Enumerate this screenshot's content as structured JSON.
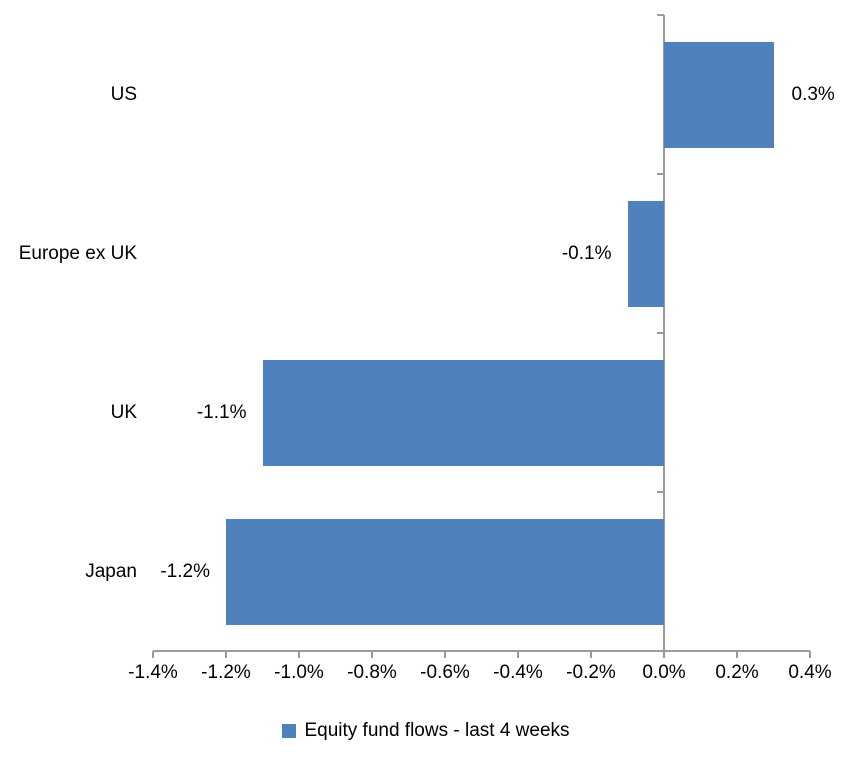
{
  "chart_data": {
    "type": "bar",
    "orientation": "horizontal",
    "title": "",
    "categories": [
      "US",
      "Europe ex UK",
      "UK",
      "Japan"
    ],
    "values": [
      0.3,
      -0.1,
      -1.1,
      -1.2
    ],
    "data_labels": [
      "0.3%",
      "-0.1%",
      "-1.1%",
      "-1.2%"
    ],
    "x_tick_labels": [
      "-1.4%",
      "-1.2%",
      "-1.0%",
      "-0.8%",
      "-0.6%",
      "-0.4%",
      "-0.2%",
      "0.0%",
      "0.2%",
      "0.4%"
    ],
    "x_tick_values": [
      -1.4,
      -1.2,
      -1.0,
      -0.8,
      -0.6,
      -0.4,
      -0.2,
      0.0,
      0.2,
      0.4
    ],
    "xlim": [
      -1.4,
      0.4
    ],
    "grid": false,
    "legend_position": "bottom",
    "legend": [
      {
        "label": "Equity fund flows - last 4 weeks",
        "color": "#4f81bd"
      }
    ],
    "colors": {
      "bar": "#4f81bd",
      "axis": "#9b9b9b",
      "text": "#000000",
      "background": "#ffffff"
    }
  }
}
